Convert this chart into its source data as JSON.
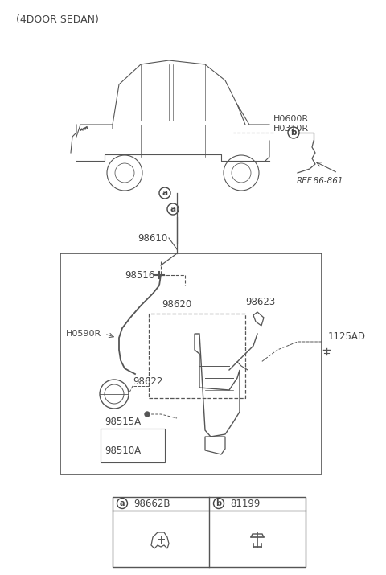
{
  "title": "(4DOOR SEDAN)",
  "bg_color": "#ffffff",
  "line_color": "#555555",
  "text_color": "#444444",
  "fig_width": 4.8,
  "fig_height": 7.15,
  "dpi": 100,
  "labels": {
    "title": "(4DOOR SEDAN)",
    "ref": "REF.86-861",
    "h0600r": "H0600R",
    "h0310r": "H0310R",
    "circle_a_top": "a",
    "circle_b_top": "b",
    "98610": "98610",
    "98516": "98516",
    "h0590r": "H0590R",
    "98620": "98620",
    "98622": "98622",
    "98623": "98623",
    "1125ad": "1125AD",
    "98515a": "98515A",
    "98510a": "98510A",
    "circle_a_bot": "a",
    "98662b": "98662B",
    "circle_b_bot": "b",
    "81199": "81199"
  }
}
